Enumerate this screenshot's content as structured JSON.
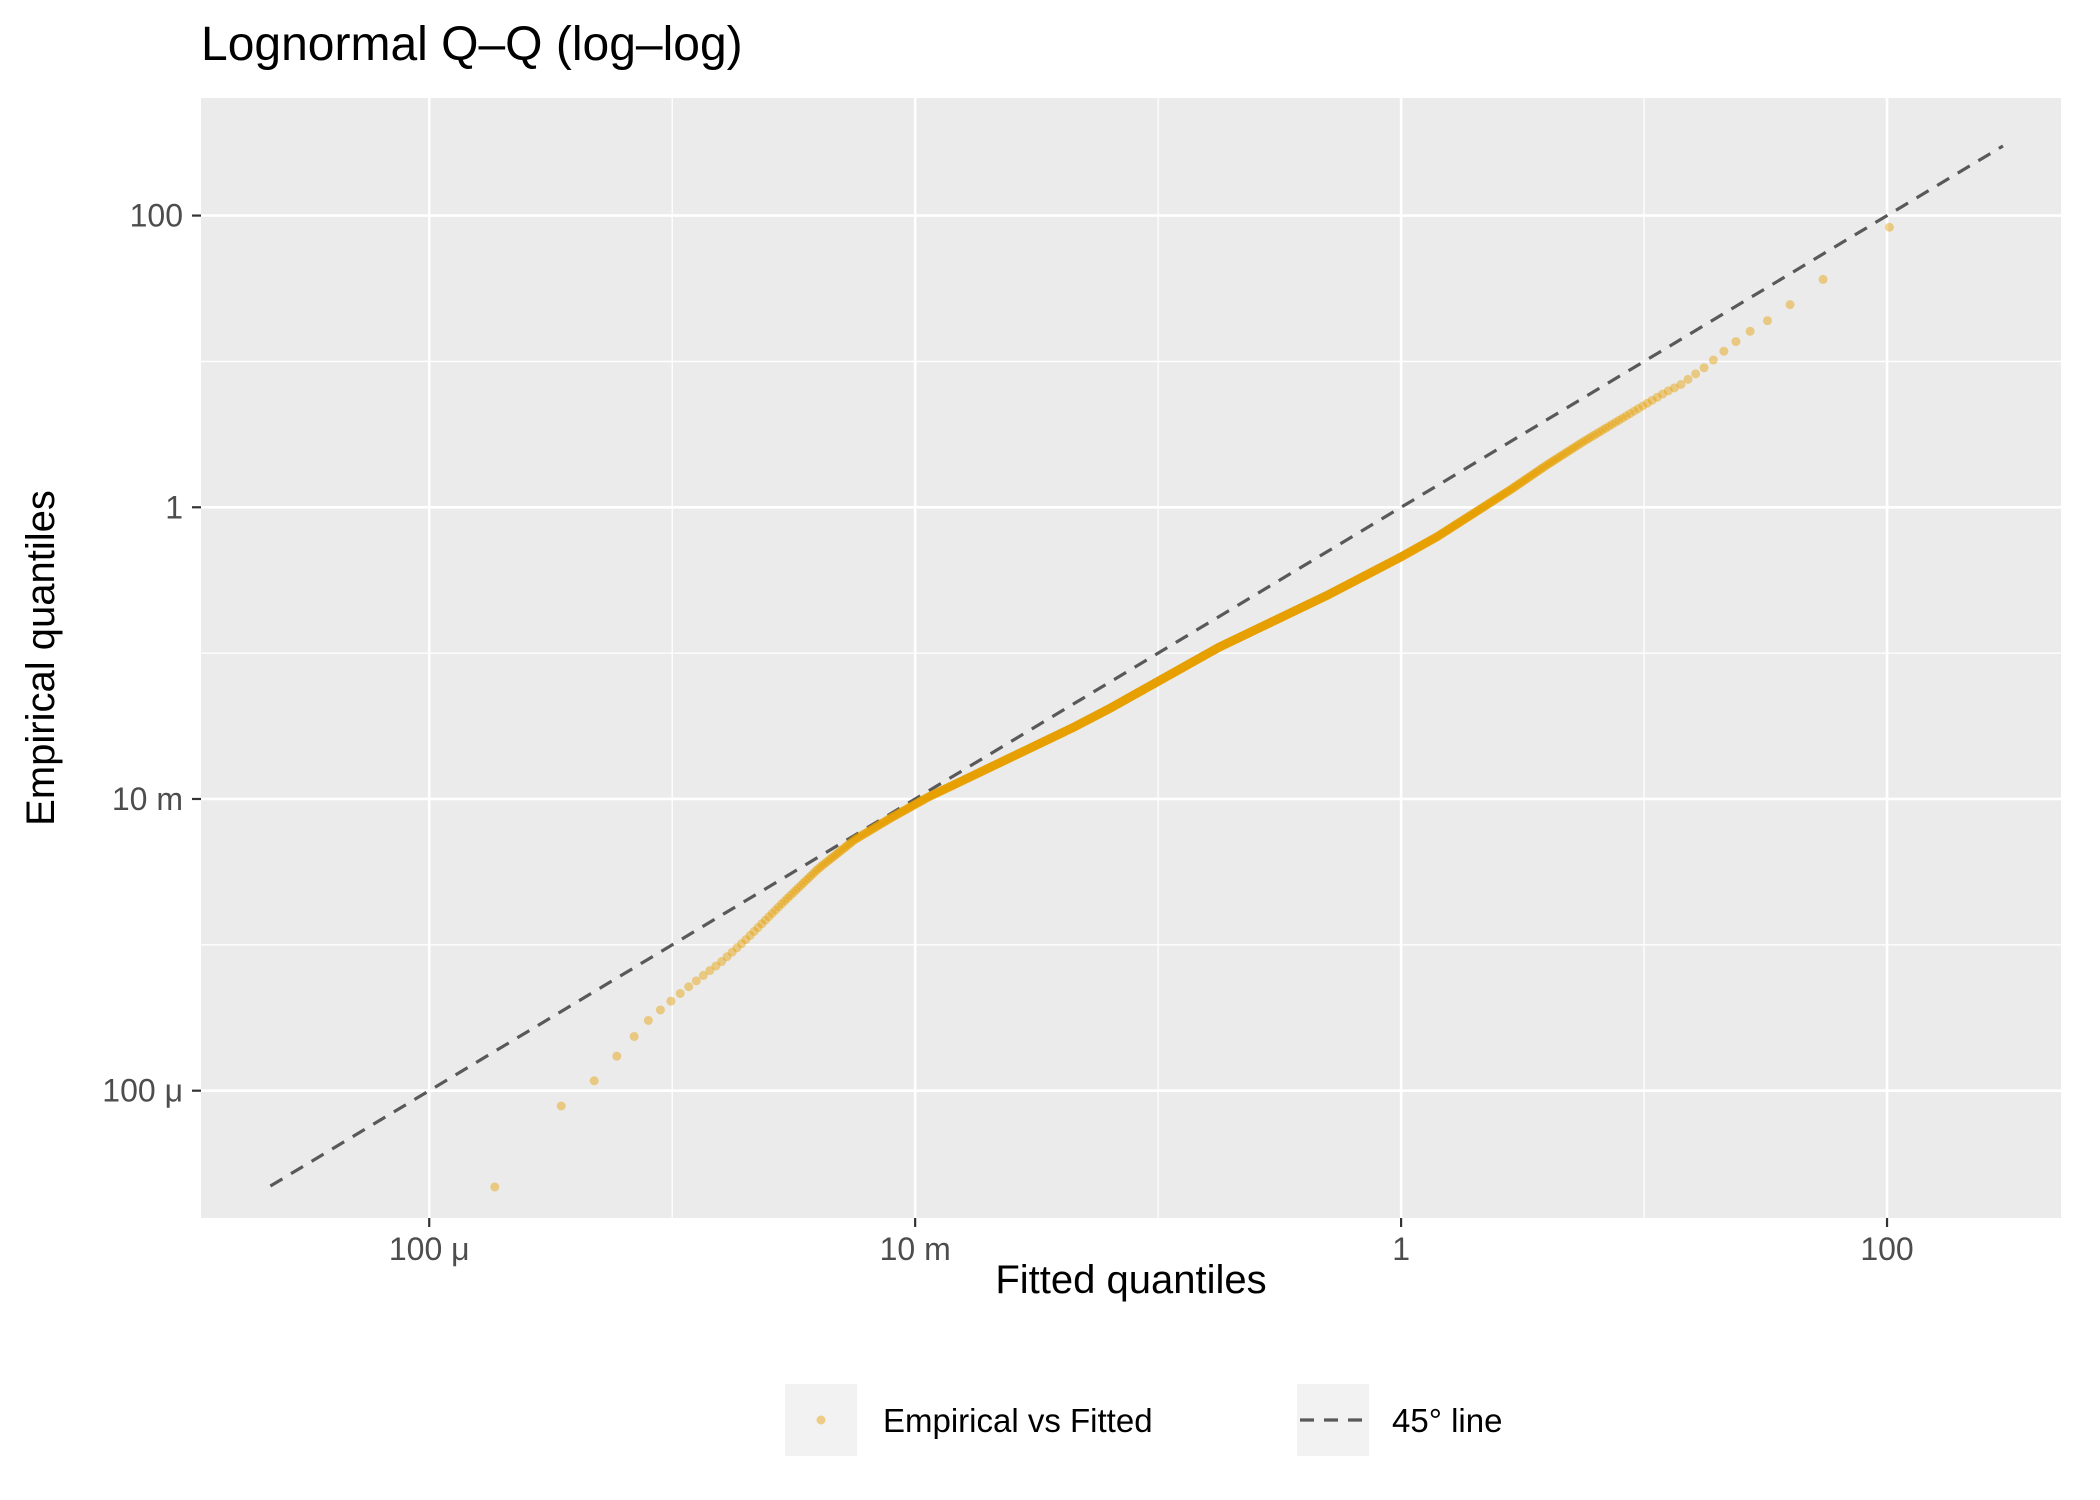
{
  "chart_data": {
    "type": "scatter",
    "title": "Lognormal Q–Q (log–log)",
    "xlabel": "Fitted quantiles",
    "ylabel": "Empirical quantiles",
    "x_scale": "log10",
    "y_scale": "log10",
    "xlim": [
      1.15e-05,
      520
    ],
    "ylim": [
      1.34e-05,
      640
    ],
    "x_ticks": [
      {
        "value": 0.0001,
        "label": "100 μ"
      },
      {
        "value": 0.01,
        "label": "10 m"
      },
      {
        "value": 1,
        "label": "1"
      },
      {
        "value": 100,
        "label": "100"
      }
    ],
    "y_ticks": [
      {
        "value": 0.0001,
        "label": "100 μ"
      },
      {
        "value": 0.01,
        "label": "10 m"
      },
      {
        "value": 1,
        "label": "1"
      },
      {
        "value": 100,
        "label": "100"
      }
    ],
    "grid": true,
    "panel_background": "#ebebeb",
    "legend_position": "bottom",
    "series": [
      {
        "name": "Empirical vs Fitted",
        "kind": "points",
        "color": "#E69F00",
        "curve_log10": {
          "x": [
            -3.73,
            -3.48,
            -3.35,
            -3.28,
            -3.19,
            -3.12,
            -3.03,
            -2.95,
            -2.88,
            -2.8,
            -2.7,
            -2.55,
            -2.4,
            -2.25,
            -2.1,
            -1.95,
            -1.8,
            -1.65,
            -1.5,
            -1.35,
            -1.2,
            -1.05,
            -0.9,
            -0.75,
            -0.6,
            -0.45,
            -0.3,
            -0.15,
            0.0,
            0.15,
            0.3,
            0.45,
            0.6,
            0.75,
            0.9,
            1.02,
            1.09,
            1.15,
            1.2,
            1.25,
            1.3,
            1.35,
            1.42,
            1.5,
            1.61,
            1.72,
            1.84,
            2.01
          ],
          "y": [
            -4.66,
            -4.13,
            -3.99,
            -3.85,
            -3.7,
            -3.55,
            -3.42,
            -3.31,
            -3.22,
            -3.12,
            -2.97,
            -2.72,
            -2.48,
            -2.28,
            -2.13,
            -1.99,
            -1.87,
            -1.75,
            -1.63,
            -1.51,
            -1.38,
            -1.24,
            -1.1,
            -0.96,
            -0.84,
            -0.72,
            -0.6,
            -0.47,
            -0.34,
            -0.2,
            -0.04,
            0.12,
            0.29,
            0.45,
            0.6,
            0.72,
            0.79,
            0.84,
            0.9,
            0.96,
            1.03,
            1.1,
            1.19,
            1.27,
            1.4,
            1.54,
            1.7,
            1.92
          ],
          "count": 1200
        }
      },
      {
        "name": "45° line",
        "kind": "line",
        "style": "dashed",
        "color": "#595959",
        "x": [
          2.22e-05,
          300
        ],
        "y": [
          2.22e-05,
          300
        ]
      }
    ]
  },
  "legend": {
    "items": [
      {
        "label": "Empirical vs Fitted",
        "icon": "point-icon",
        "color": "#E69F00"
      },
      {
        "label": "45° line",
        "icon": "dashed-line-icon",
        "color": "#595959"
      }
    ]
  }
}
